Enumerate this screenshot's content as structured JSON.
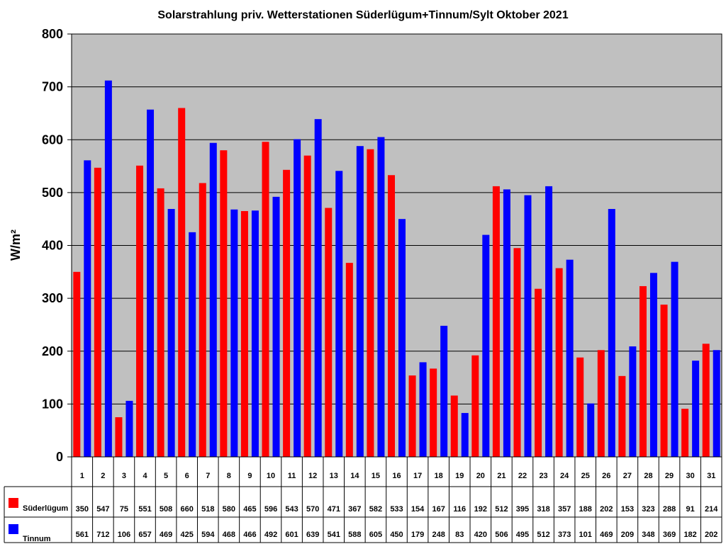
{
  "chart_data": {
    "type": "bar",
    "title": "Solarstrahlung priv. Wetterstationen Süderlügum+Tinnum/Sylt Oktober 2021",
    "ylabel": "W/m²",
    "xlabel": "",
    "ylim": [
      0,
      800
    ],
    "yticks": [
      0,
      100,
      200,
      300,
      400,
      500,
      600,
      700,
      800
    ],
    "grid": true,
    "legend": "data-table",
    "categories": [
      "1",
      "2",
      "3",
      "4",
      "5",
      "6",
      "7",
      "8",
      "9",
      "10",
      "11",
      "12",
      "13",
      "14",
      "15",
      "16",
      "17",
      "18",
      "19",
      "20",
      "21",
      "22",
      "23",
      "24",
      "25",
      "26",
      "27",
      "28",
      "29",
      "30",
      "31"
    ],
    "series": [
      {
        "name": "Süderlügum",
        "color": "#ff0000",
        "values": [
          350,
          547,
          75,
          551,
          508,
          660,
          518,
          580,
          465,
          596,
          543,
          570,
          471,
          367,
          582,
          533,
          154,
          167,
          116,
          192,
          512,
          395,
          318,
          357,
          188,
          202,
          153,
          323,
          288,
          91,
          214
        ]
      },
      {
        "name": "Tinnum",
        "color": "#0000ff",
        "values": [
          561,
          712,
          106,
          657,
          469,
          425,
          594,
          468,
          466,
          492,
          601,
          639,
          541,
          588,
          605,
          450,
          179,
          248,
          83,
          420,
          506,
          495,
          512,
          373,
          101,
          469,
          209,
          348,
          369,
          182,
          202
        ]
      }
    ],
    "plot_background": "#c0c0c0"
  }
}
